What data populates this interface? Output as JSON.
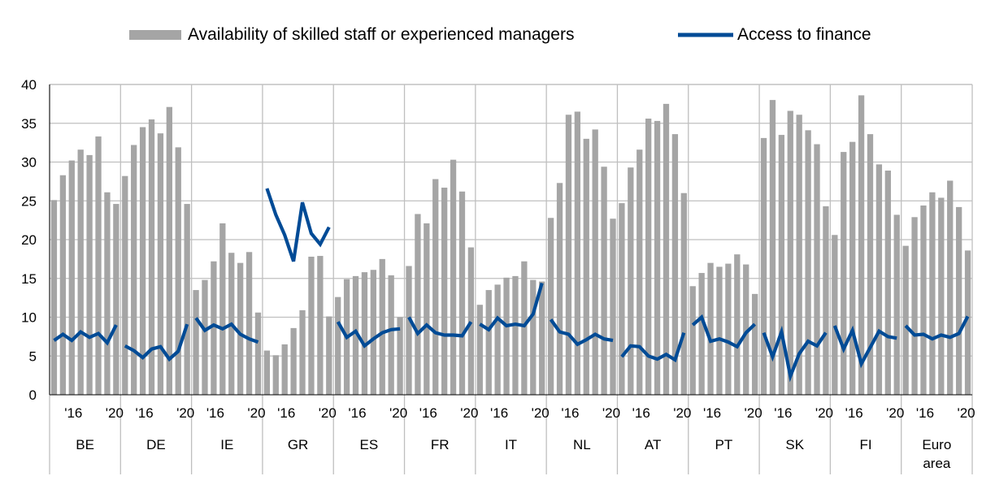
{
  "chart_data": {
    "type": "bar",
    "legend": {
      "position": "top",
      "entries": [
        {
          "label": "Availability of skilled staff or experienced managers",
          "symbol": "bar"
        },
        {
          "label": "Access to finance",
          "symbol": "line"
        }
      ]
    },
    "ylim": [
      0,
      40
    ],
    "yticks": [
      0,
      5,
      10,
      15,
      20,
      25,
      30,
      35,
      40
    ],
    "grid": true,
    "xtick_labels": [
      "'16",
      "'20"
    ],
    "colors": {
      "bars": "#A5A5A5",
      "line": "#004B96",
      "grid": "#BFBFBF",
      "axis": "#000000"
    },
    "groups": [
      {
        "name": "BE",
        "bars": [
          25.1,
          28.3,
          30.2,
          31.6,
          30.9,
          33.3,
          26.1,
          24.6
        ],
        "line": [
          7.0,
          7.8,
          7.0,
          8.1,
          7.4,
          7.9,
          6.7,
          9.0
        ]
      },
      {
        "name": "DE",
        "bars": [
          28.2,
          32.2,
          34.5,
          35.5,
          33.7,
          37.1,
          31.9,
          24.6
        ],
        "line": [
          6.3,
          5.7,
          4.8,
          5.9,
          6.2,
          4.6,
          5.6,
          9.1
        ]
      },
      {
        "name": "IE",
        "bars": [
          13.5,
          14.8,
          17.2,
          22.1,
          18.3,
          17.0,
          18.4,
          10.6
        ],
        "line": [
          9.9,
          8.3,
          9.0,
          8.5,
          9.1,
          7.8,
          7.2,
          6.8
        ]
      },
      {
        "name": "GR",
        "bars": [
          5.7,
          5.1,
          6.5,
          8.6,
          10.9,
          17.8,
          17.9,
          10.1
        ],
        "line": [
          26.6,
          23.2,
          20.6,
          17.2,
          24.8,
          20.8,
          19.4,
          21.6
        ]
      },
      {
        "name": "ES",
        "bars": [
          12.6,
          14.9,
          15.3,
          15.8,
          16.1,
          17.5,
          15.4,
          10.0
        ],
        "line": [
          9.4,
          7.4,
          8.2,
          6.3,
          7.2,
          8.0,
          8.4,
          8.5
        ]
      },
      {
        "name": "FR",
        "bars": [
          16.6,
          23.3,
          22.1,
          27.8,
          26.7,
          30.3,
          26.2,
          19.0
        ],
        "line": [
          10.0,
          7.9,
          9.0,
          8.0,
          7.7,
          7.7,
          7.6,
          9.4
        ]
      },
      {
        "name": "IT",
        "bars": [
          11.6,
          13.5,
          14.2,
          15.1,
          15.3,
          17.2,
          14.8,
          14.6
        ],
        "line": [
          9.1,
          8.4,
          9.9,
          8.9,
          9.1,
          8.9,
          10.4,
          14.4
        ]
      },
      {
        "name": "NL",
        "bars": [
          22.8,
          27.3,
          36.1,
          36.5,
          33.0,
          34.2,
          29.4,
          22.7
        ],
        "line": [
          9.7,
          8.1,
          7.8,
          6.5,
          7.1,
          7.8,
          7.2,
          7.0
        ]
      },
      {
        "name": "AT",
        "bars": [
          24.7,
          29.3,
          31.6,
          35.6,
          35.3,
          37.5,
          33.6,
          26.0
        ],
        "line": [
          4.9,
          6.3,
          6.2,
          5.0,
          4.6,
          5.2,
          4.5,
          8.0
        ]
      },
      {
        "name": "PT",
        "bars": [
          14.0,
          15.7,
          17.0,
          16.5,
          16.9,
          18.1,
          16.8,
          13.0
        ],
        "line": [
          9.0,
          10.0,
          6.9,
          7.2,
          6.8,
          6.2,
          8.0,
          9.1
        ]
      },
      {
        "name": "SK",
        "bars": [
          33.1,
          38.0,
          33.5,
          36.6,
          36.1,
          34.1,
          32.3,
          24.3
        ],
        "line": [
          8.0,
          4.9,
          8.1,
          2.4,
          5.3,
          6.9,
          6.3,
          8.0
        ]
      },
      {
        "name": "FI",
        "bars": [
          20.6,
          31.3,
          32.6,
          38.6,
          33.6,
          29.7,
          28.9,
          23.2
        ],
        "line": [
          8.9,
          5.9,
          8.3,
          4.0,
          6.1,
          8.2,
          7.5,
          7.3
        ]
      },
      {
        "name": "Euro\narea",
        "bars": [
          19.2,
          22.9,
          24.4,
          26.1,
          25.4,
          27.6,
          24.2,
          18.6
        ],
        "line": [
          8.9,
          7.7,
          7.8,
          7.2,
          7.7,
          7.4,
          7.9,
          10.1
        ]
      }
    ]
  }
}
